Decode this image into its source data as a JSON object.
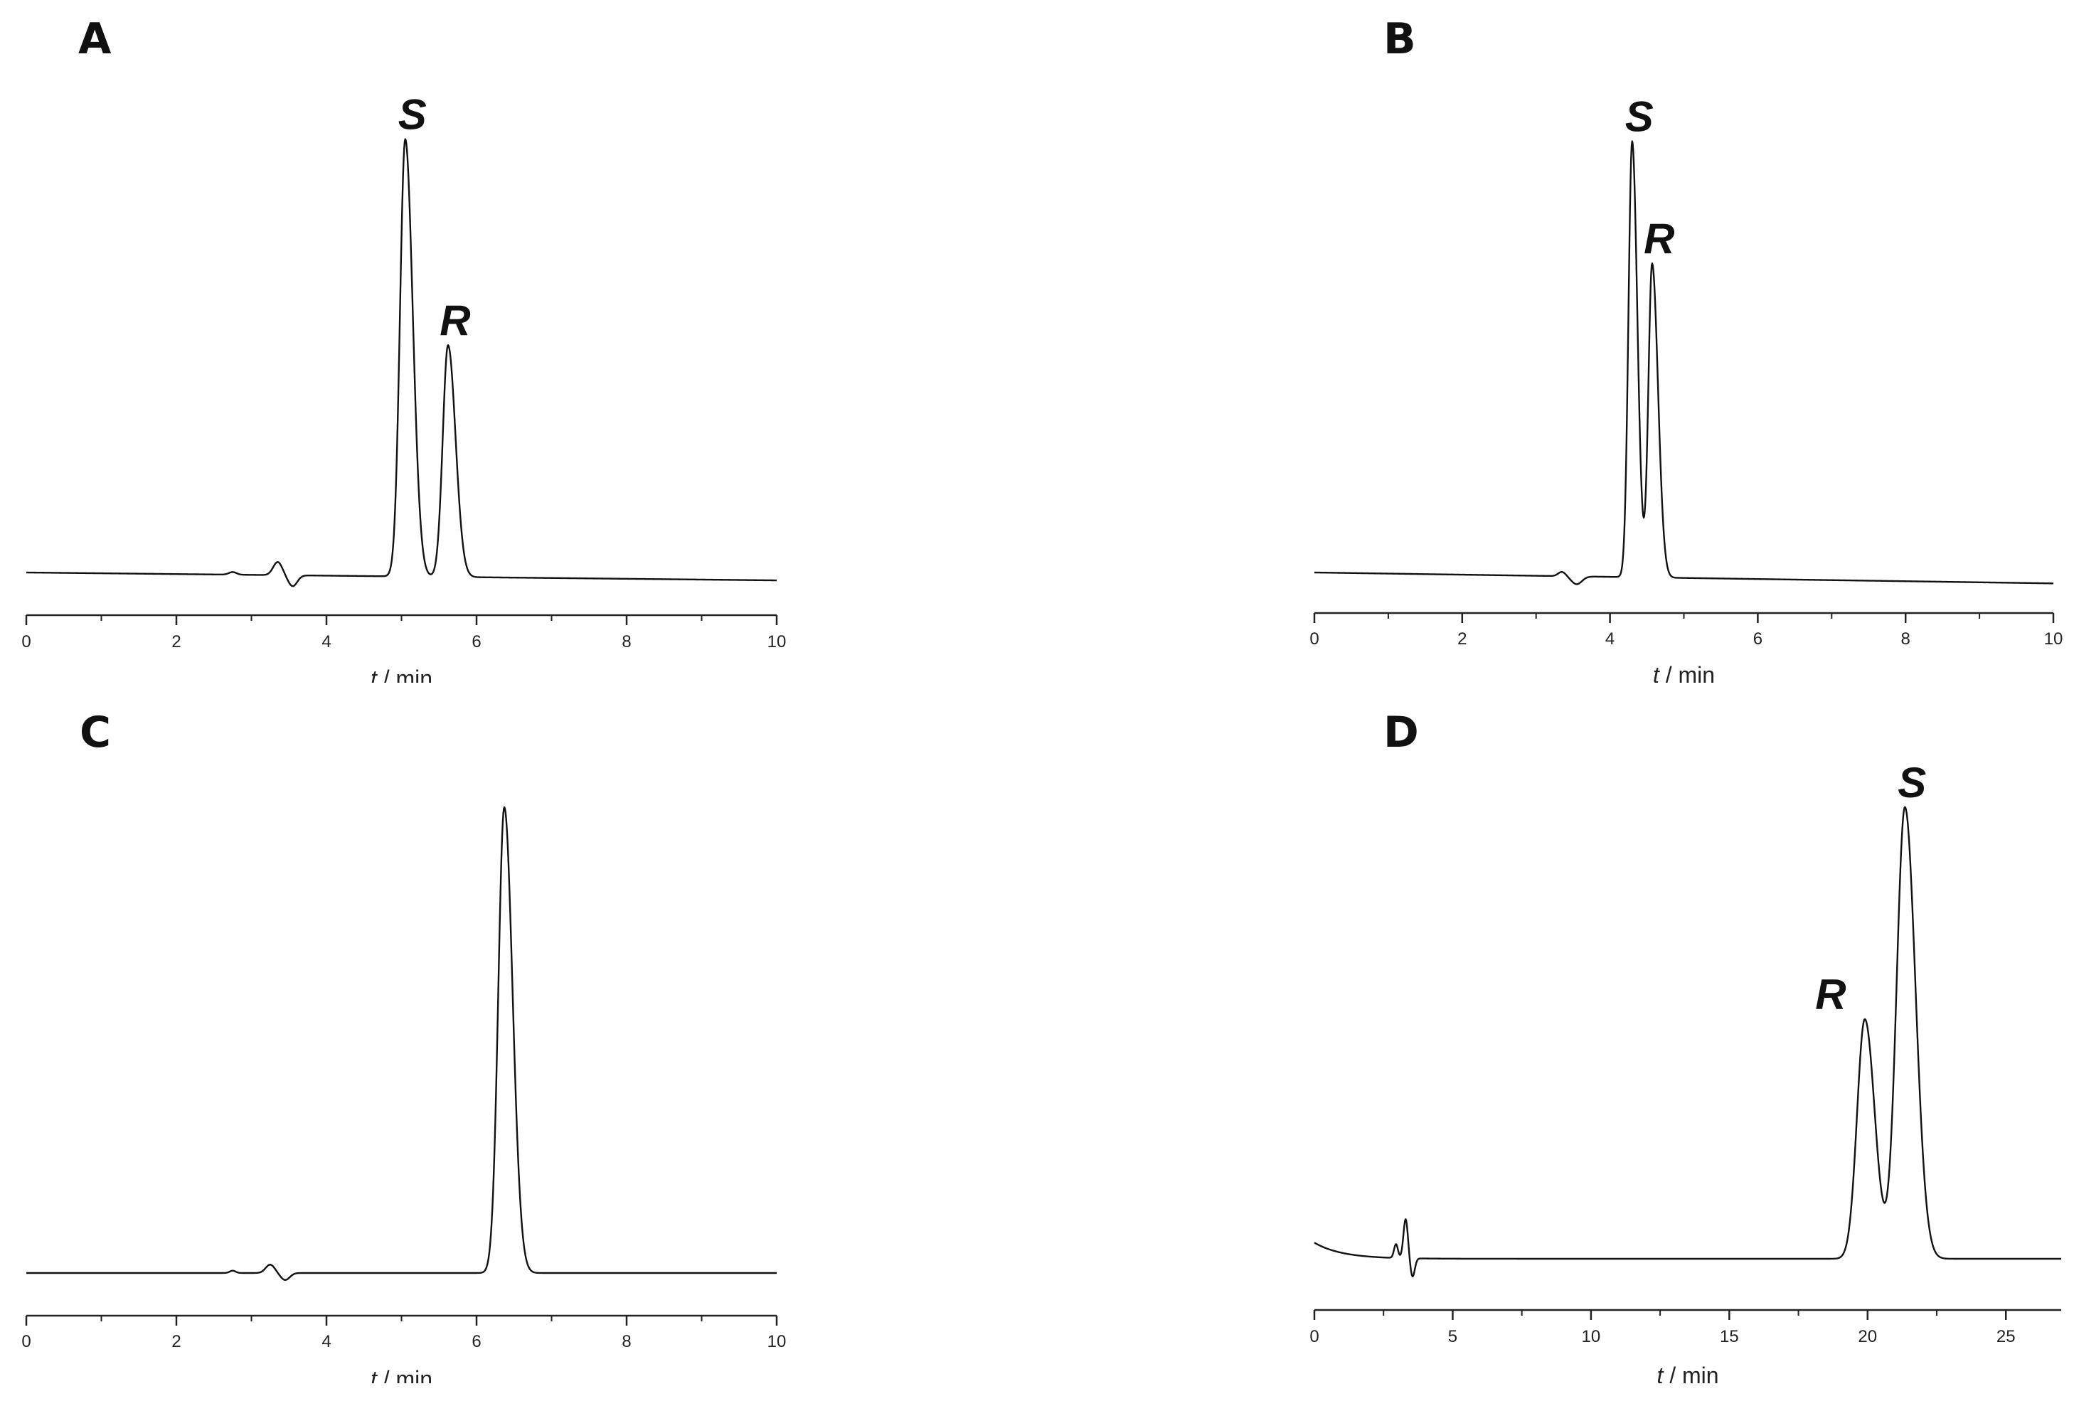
{
  "figure": {
    "colors": {
      "trace": "#111111",
      "axis": "#222222"
    }
  },
  "chart_data": [
    {
      "type": "line",
      "panel": "A",
      "xlabel": {
        "var": "t",
        "unit": " / min"
      },
      "xlim": [
        0,
        10
      ],
      "xticks": [
        0,
        2,
        4,
        6,
        8,
        10
      ],
      "ylabel": "",
      "baseline": {
        "start": 0.0,
        "end": -0.018
      },
      "disturbances": [
        {
          "t": 2.75,
          "amp": 0.006,
          "width": 0.05
        },
        {
          "t": 3.35,
          "amp": 0.03,
          "width": 0.06
        },
        {
          "t": 3.55,
          "amp": -0.025,
          "width": 0.06
        }
      ],
      "peaks": [
        {
          "t": 5.05,
          "height": 1.0,
          "width_l": 0.07,
          "width_r": 0.1,
          "label": "S"
        },
        {
          "t": 5.62,
          "height": 0.53,
          "width_l": 0.07,
          "width_r": 0.1,
          "label": "R"
        }
      ]
    },
    {
      "type": "line",
      "panel": "B",
      "xlabel": {
        "var": "t",
        "unit": " / min"
      },
      "xlim": [
        0,
        10
      ],
      "xticks": [
        0,
        2,
        4,
        6,
        8,
        10
      ],
      "ylabel": "",
      "baseline": {
        "start": 0.0,
        "end": -0.025
      },
      "disturbances": [
        {
          "t": 3.35,
          "amp": 0.01,
          "width": 0.05
        },
        {
          "t": 3.55,
          "amp": -0.018,
          "width": 0.07
        }
      ],
      "peaks": [
        {
          "t": 4.3,
          "height": 1.0,
          "width_l": 0.05,
          "width_r": 0.07,
          "label": "S"
        },
        {
          "t": 4.57,
          "height": 0.72,
          "width_l": 0.05,
          "width_r": 0.08,
          "label": "R"
        }
      ]
    },
    {
      "type": "line",
      "panel": "C",
      "xlabel": {
        "var": "t",
        "unit": " / min"
      },
      "xlim": [
        0,
        10
      ],
      "xticks": [
        0,
        2,
        4,
        6,
        8,
        10
      ],
      "ylabel": "",
      "baseline": {
        "start": 0.0,
        "end": 0.0
      },
      "disturbances": [
        {
          "t": 2.75,
          "amp": 0.005,
          "width": 0.04
        },
        {
          "t": 3.25,
          "amp": 0.018,
          "width": 0.06
        },
        {
          "t": 3.45,
          "amp": -0.015,
          "width": 0.06
        }
      ],
      "peaks": [
        {
          "t": 6.37,
          "height": 1.0,
          "width_l": 0.08,
          "width_r": 0.11
        }
      ]
    },
    {
      "type": "line",
      "panel": "D",
      "xlabel": {
        "var": "t",
        "unit": " / min"
      },
      "xlim": [
        0,
        27
      ],
      "xticks": [
        0,
        5,
        10,
        15,
        20,
        25
      ],
      "ylabel": "",
      "baseline": {
        "start": 0.0,
        "end": 0.0
      },
      "drift": {
        "amp": 0.035,
        "tau": 1.0
      },
      "disturbances": [
        {
          "t": 2.95,
          "amp": 0.03,
          "width": 0.07
        },
        {
          "t": 3.3,
          "amp": 0.085,
          "width": 0.08
        },
        {
          "t": 3.55,
          "amp": -0.04,
          "width": 0.08
        }
      ],
      "peaks": [
        {
          "t": 19.9,
          "height": 0.52,
          "width_l": 0.28,
          "width_r": 0.36,
          "label": "R",
          "label_side": "left"
        },
        {
          "t": 21.35,
          "height": 0.98,
          "width_l": 0.3,
          "width_r": 0.38,
          "label": "S"
        }
      ]
    }
  ],
  "panels": [
    {
      "label": "A"
    },
    {
      "label": "B"
    },
    {
      "label": "C"
    },
    {
      "label": "D"
    }
  ]
}
